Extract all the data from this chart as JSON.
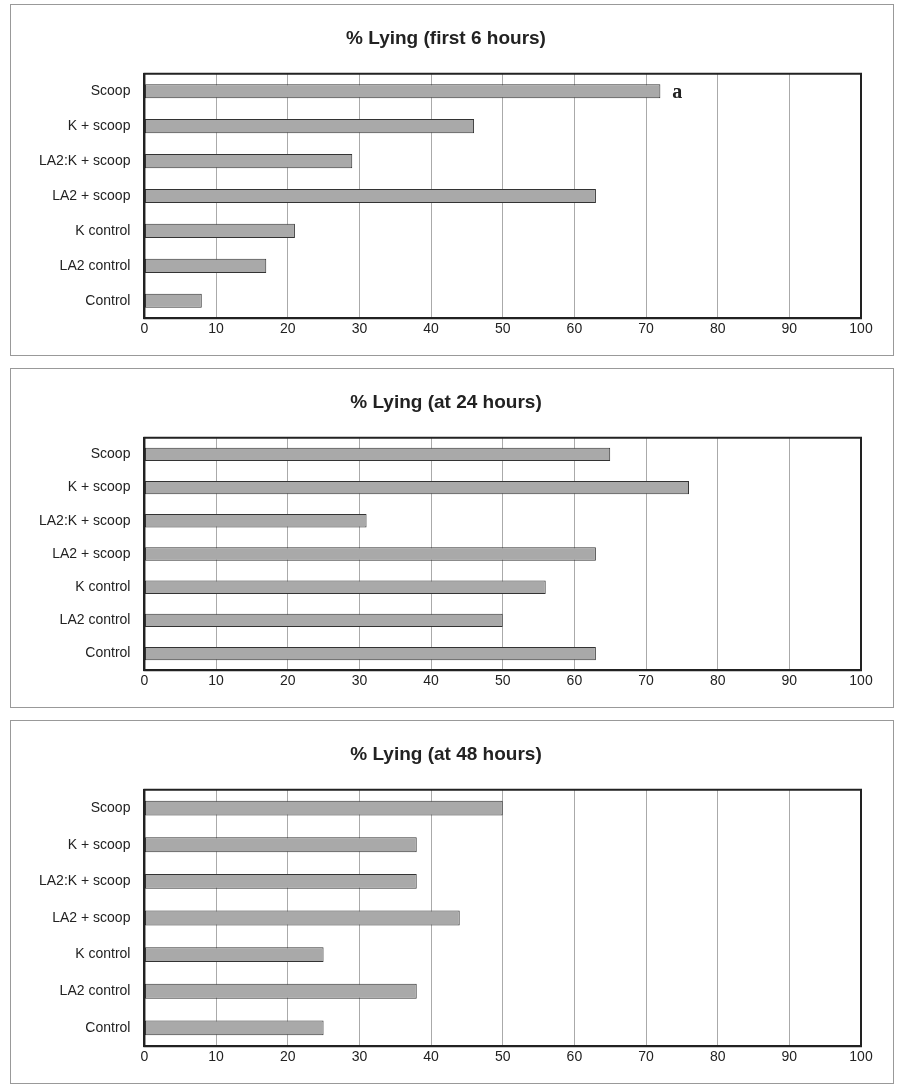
{
  "chart_data": [
    {
      "type": "bar",
      "orientation": "horizontal",
      "title": "% Lying (first 6 hours)",
      "categories": [
        "Scoop",
        "K + scoop",
        "LA2:K + scoop",
        "LA2 + scoop",
        "K control",
        "LA2 control",
        "Control"
      ],
      "values": [
        72,
        46,
        29,
        63,
        21,
        17,
        8
      ],
      "color": "#a9a9a9",
      "xlim": [
        0,
        100
      ],
      "xticks": [
        0,
        10,
        20,
        30,
        40,
        50,
        60,
        70,
        80,
        90,
        100
      ],
      "grid": "x",
      "legend": false,
      "annotations": [
        {
          "text": "a",
          "x": 72,
          "y": "Scoop"
        }
      ]
    },
    {
      "type": "bar",
      "orientation": "horizontal",
      "title": "% Lying (at 24 hours)",
      "categories": [
        "Scoop",
        "K + scoop",
        "LA2:K + scoop",
        "LA2 + scoop",
        "K control",
        "LA2 control",
        "Control"
      ],
      "values": [
        65,
        76,
        31,
        63,
        56,
        50,
        63
      ],
      "color": "#a9a9a9",
      "xlim": [
        0,
        100
      ],
      "xticks": [
        0,
        10,
        20,
        30,
        40,
        50,
        60,
        70,
        80,
        90,
        100
      ],
      "grid": "x",
      "legend": false
    },
    {
      "type": "bar",
      "orientation": "horizontal",
      "title": "% Lying (at 48 hours)",
      "categories": [
        "Scoop",
        "K + scoop",
        "LA2:K + scoop",
        "LA2 + scoop",
        "K control",
        "LA2 control",
        "Control"
      ],
      "values": [
        50,
        38,
        38,
        44,
        25,
        38,
        25
      ],
      "color": "#a9a9a9",
      "xlim": [
        0,
        100
      ],
      "xticks": [
        0,
        10,
        20,
        30,
        40,
        50,
        60,
        70,
        80,
        90,
        100
      ],
      "grid": "x",
      "legend": false
    }
  ]
}
